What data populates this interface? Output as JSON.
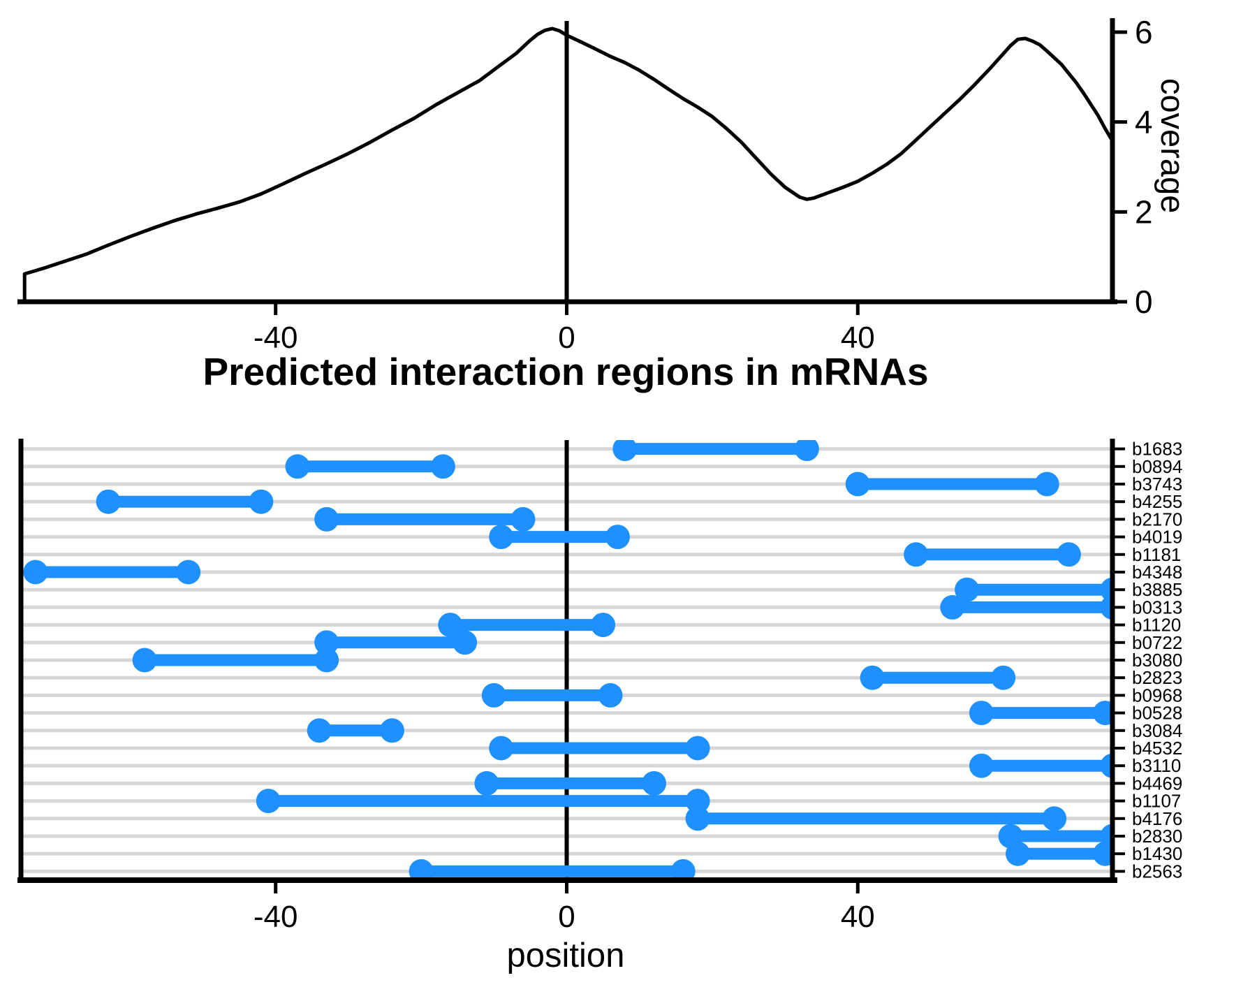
{
  "title": "Predicted interaction regions in mRNAs",
  "colors": {
    "bar_blue": "#1E90FF",
    "grid_gray": "#D6D6D6",
    "axis_black": "#000000"
  },
  "chart_data": [
    {
      "type": "line",
      "name": "coverage-density",
      "title": "",
      "xlabel": "",
      "ylabel": "coverage",
      "xlim": [
        -75,
        75
      ],
      "ylim": [
        0,
        6.3
      ],
      "x_ticks": [
        -40,
        0,
        40
      ],
      "y_ticks": [
        0,
        2,
        4,
        6
      ],
      "y_axis_side": "right",
      "grid": false,
      "zero_line": true,
      "series": [
        {
          "name": "coverage",
          "points": [
            [
              -74.5,
              0.03
            ],
            [
              -74.5,
              0.62
            ],
            [
              -72,
              0.74
            ],
            [
              -69,
              0.9
            ],
            [
              -66,
              1.06
            ],
            [
              -63,
              1.26
            ],
            [
              -60,
              1.45
            ],
            [
              -57,
              1.63
            ],
            [
              -54,
              1.8
            ],
            [
              -51,
              1.95
            ],
            [
              -48,
              2.08
            ],
            [
              -45,
              2.22
            ],
            [
              -42,
              2.4
            ],
            [
              -39,
              2.62
            ],
            [
              -36,
              2.85
            ],
            [
              -33,
              3.07
            ],
            [
              -30,
              3.3
            ],
            [
              -27,
              3.55
            ],
            [
              -24,
              3.82
            ],
            [
              -21,
              4.08
            ],
            [
              -18,
              4.38
            ],
            [
              -15,
              4.65
            ],
            [
              -12,
              4.92
            ],
            [
              -9,
              5.28
            ],
            [
              -7,
              5.52
            ],
            [
              -5,
              5.82
            ],
            [
              -4,
              5.95
            ],
            [
              -3,
              6.04
            ],
            [
              -2,
              6.08
            ],
            [
              -1,
              6.03
            ],
            [
              0,
              5.93
            ],
            [
              2,
              5.78
            ],
            [
              4,
              5.62
            ],
            [
              6,
              5.46
            ],
            [
              8,
              5.32
            ],
            [
              10,
              5.15
            ],
            [
              12,
              4.95
            ],
            [
              14,
              4.73
            ],
            [
              16,
              4.52
            ],
            [
              18,
              4.33
            ],
            [
              20,
              4.12
            ],
            [
              22,
              3.85
            ],
            [
              24,
              3.55
            ],
            [
              26,
              3.2
            ],
            [
              28,
              2.85
            ],
            [
              30,
              2.55
            ],
            [
              32,
              2.33
            ],
            [
              33,
              2.28
            ],
            [
              34,
              2.31
            ],
            [
              36,
              2.43
            ],
            [
              38,
              2.55
            ],
            [
              40,
              2.68
            ],
            [
              42,
              2.86
            ],
            [
              44,
              3.06
            ],
            [
              46,
              3.3
            ],
            [
              48,
              3.6
            ],
            [
              50,
              3.9
            ],
            [
              52,
              4.2
            ],
            [
              54,
              4.5
            ],
            [
              56,
              4.82
            ],
            [
              58,
              5.16
            ],
            [
              60,
              5.52
            ],
            [
              61,
              5.7
            ],
            [
              62,
              5.84
            ],
            [
              63,
              5.86
            ],
            [
              64,
              5.8
            ],
            [
              65,
              5.72
            ],
            [
              66,
              5.58
            ],
            [
              68,
              5.28
            ],
            [
              70,
              4.88
            ],
            [
              71,
              4.65
            ],
            [
              72,
              4.4
            ],
            [
              73,
              4.15
            ],
            [
              74,
              3.85
            ],
            [
              75,
              3.58
            ]
          ]
        }
      ]
    },
    {
      "type": "dumbbell",
      "name": "interaction-regions",
      "title": "",
      "xlabel": "position",
      "ylabel": "",
      "xlim": [
        -75,
        75
      ],
      "x_ticks": [
        -40,
        0,
        40
      ],
      "grid": true,
      "zero_line": true,
      "rows": [
        {
          "label": "b1683",
          "start": 8,
          "end": 33
        },
        {
          "label": "b0894",
          "start": -37,
          "end": -17
        },
        {
          "label": "b3743",
          "start": 40,
          "end": 66
        },
        {
          "label": "b4255",
          "start": -63,
          "end": -42
        },
        {
          "label": "b2170",
          "start": -33,
          "end": -6
        },
        {
          "label": "b4019",
          "start": -9,
          "end": 7
        },
        {
          "label": "b1181",
          "start": 48,
          "end": 69
        },
        {
          "label": "b4348",
          "start": -73,
          "end": -52
        },
        {
          "label": "b3885",
          "start": 55,
          "end": 75
        },
        {
          "label": "b0313",
          "start": 53,
          "end": 75
        },
        {
          "label": "b1120",
          "start": -16,
          "end": 5
        },
        {
          "label": "b0722",
          "start": -33,
          "end": -14
        },
        {
          "label": "b3080",
          "start": -58,
          "end": -33
        },
        {
          "label": "b2823",
          "start": 42,
          "end": 60
        },
        {
          "label": "b0968",
          "start": -10,
          "end": 6
        },
        {
          "label": "b0528",
          "start": 57,
          "end": 74
        },
        {
          "label": "b3084",
          "start": -34,
          "end": -24
        },
        {
          "label": "b4532",
          "start": -9,
          "end": 18
        },
        {
          "label": "b3110",
          "start": 57,
          "end": 75
        },
        {
          "label": "b4469",
          "start": -11,
          "end": 12
        },
        {
          "label": "b1107",
          "start": -41,
          "end": 18
        },
        {
          "label": "b4176",
          "start": 18,
          "end": 67
        },
        {
          "label": "b2830",
          "start": 61,
          "end": 75
        },
        {
          "label": "b1430",
          "start": 62,
          "end": 74
        },
        {
          "label": "b2563",
          "start": -20,
          "end": 16
        }
      ]
    }
  ]
}
